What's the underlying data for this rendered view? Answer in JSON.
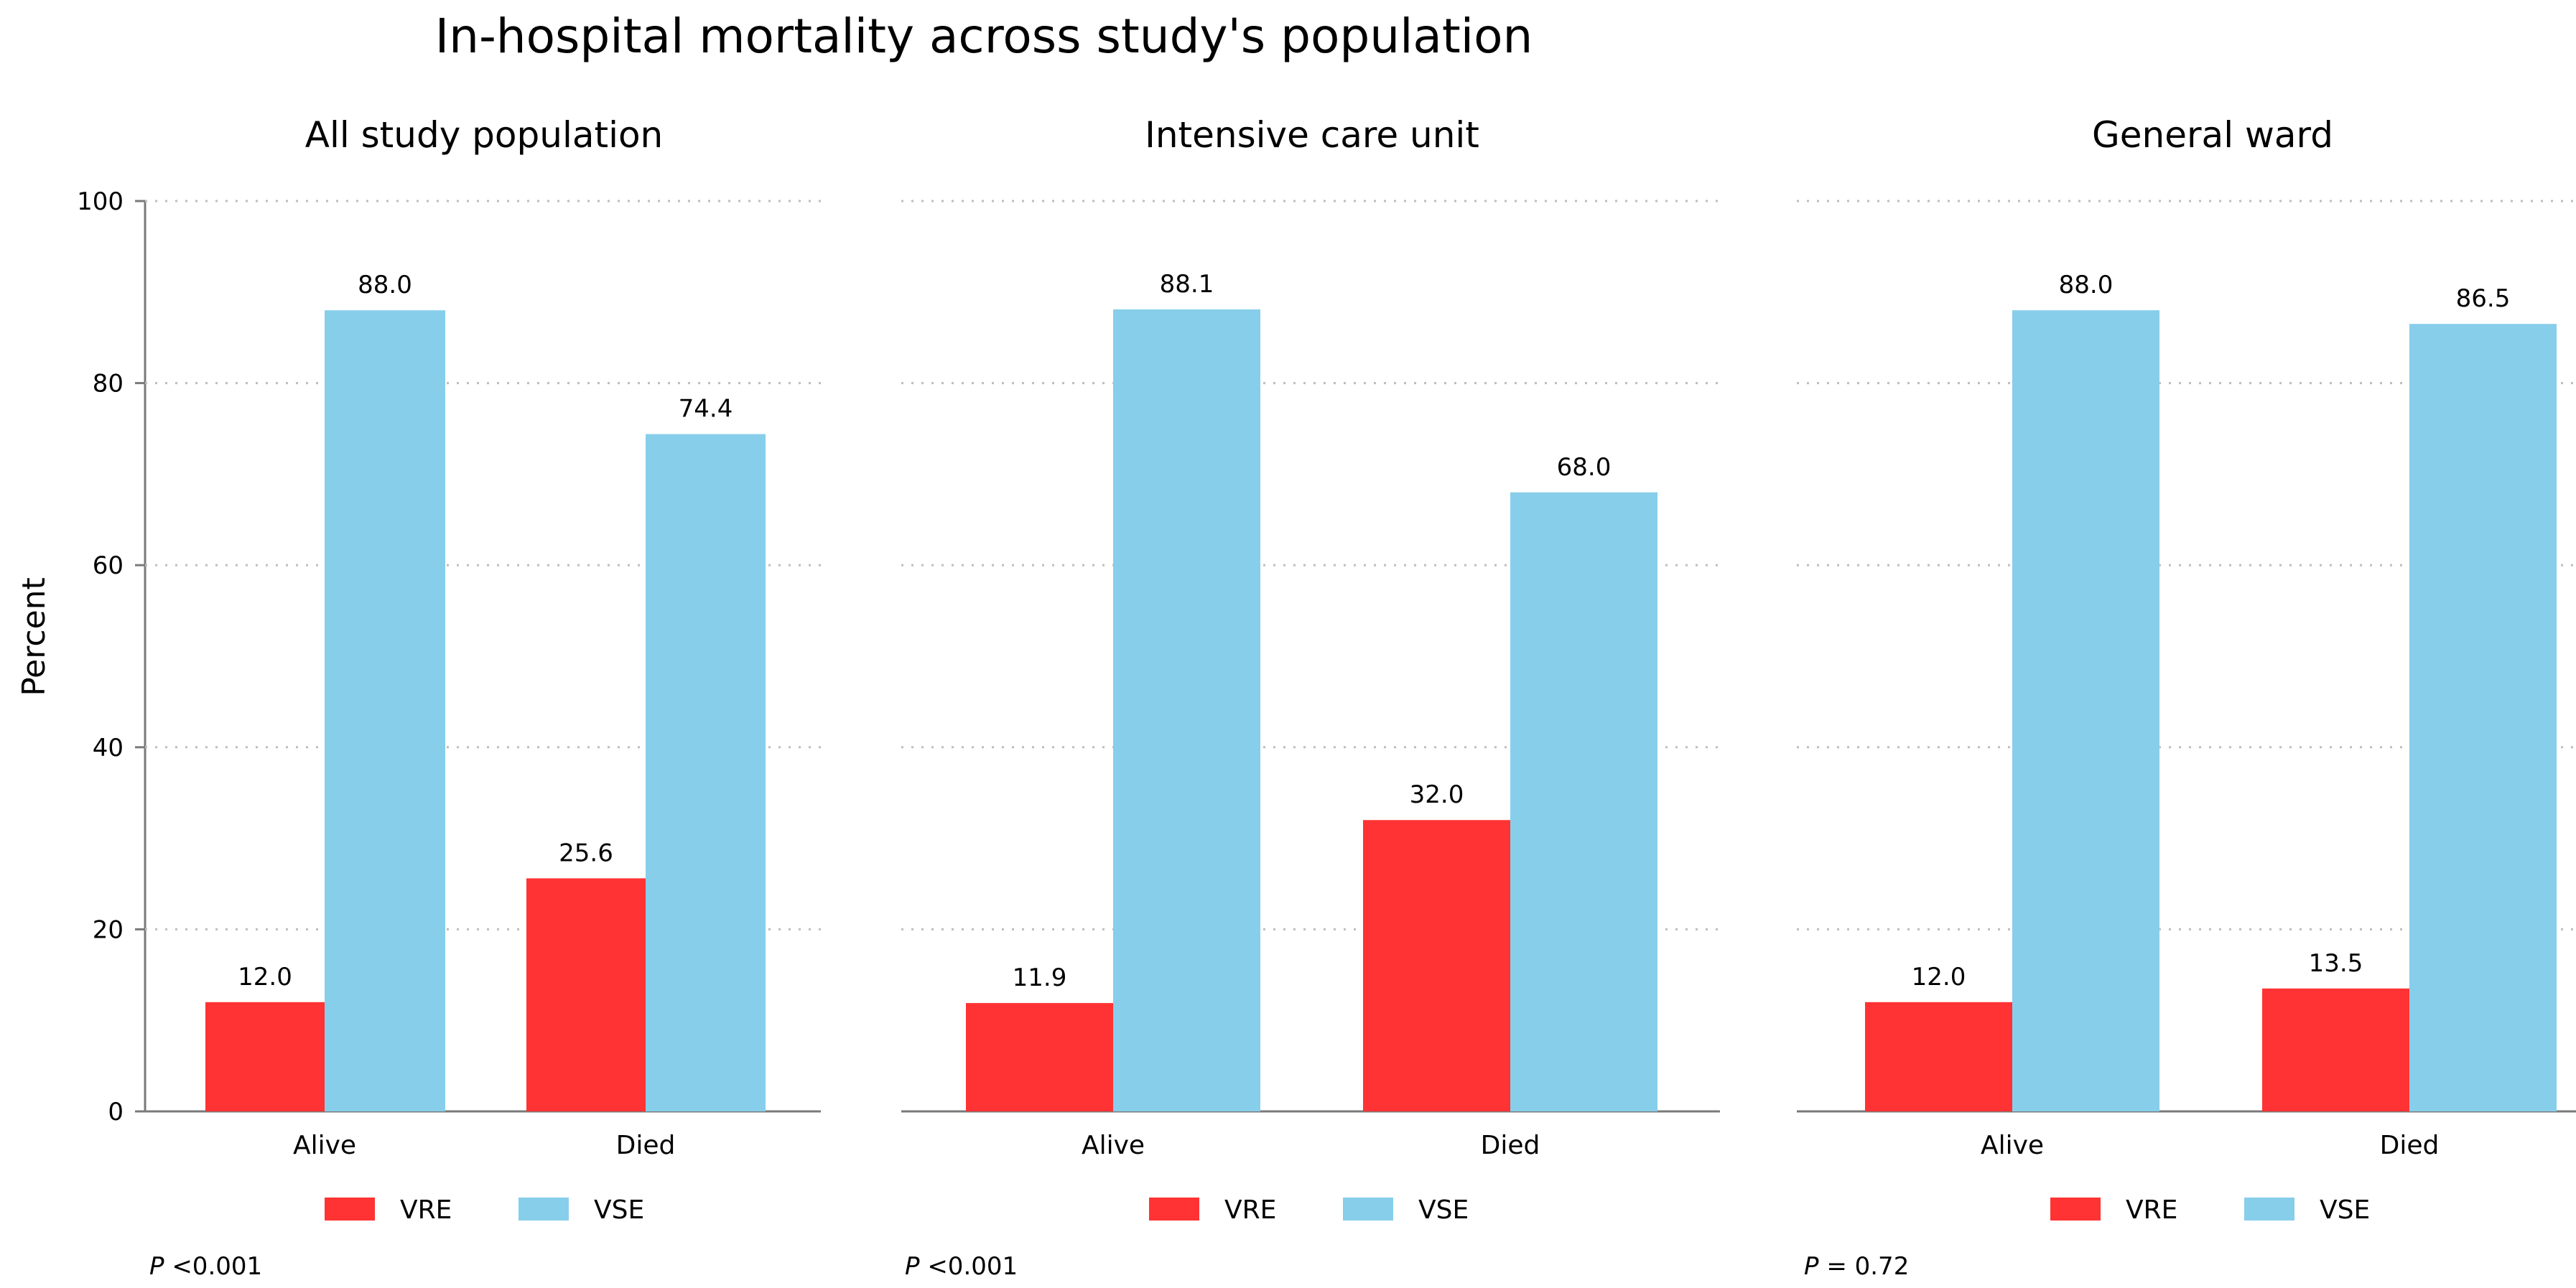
{
  "chart_data": {
    "type": "bar",
    "title": "In-hospital mortality across study's population",
    "ylabel": "Percent",
    "ylim": [
      0,
      100
    ],
    "yticks": [
      0,
      20,
      40,
      60,
      80,
      100
    ],
    "grid": true,
    "legend_position": "bottom",
    "series_names": [
      "VRE",
      "VSE"
    ],
    "colors": {
      "VRE": "#ff3333",
      "VSE": "#87ceeb"
    },
    "panels": [
      {
        "title": "All study population",
        "categories": [
          "Alive",
          "Died"
        ],
        "series": [
          {
            "name": "VRE",
            "values": [
              12.0,
              25.6
            ],
            "labels": [
              "12.0",
              "25.6"
            ]
          },
          {
            "name": "VSE",
            "values": [
              88.0,
              74.4
            ],
            "labels": [
              "88.0",
              "74.4"
            ]
          }
        ],
        "p_symbol": "P",
        "p_text": " <0.001"
      },
      {
        "title": "Intensive care unit",
        "categories": [
          "Alive",
          "Died"
        ],
        "series": [
          {
            "name": "VRE",
            "values": [
              11.9,
              32.0
            ],
            "labels": [
              "11.9",
              "32.0"
            ]
          },
          {
            "name": "VSE",
            "values": [
              88.1,
              68.0
            ],
            "labels": [
              "88.1",
              "68.0"
            ]
          }
        ],
        "p_symbol": "P",
        "p_text": " <0.001"
      },
      {
        "title": "General ward",
        "categories": [
          "Alive",
          "Died"
        ],
        "series": [
          {
            "name": "VRE",
            "values": [
              12.0,
              13.5
            ],
            "labels": [
              "12.0",
              "13.5"
            ]
          },
          {
            "name": "VSE",
            "values": [
              88.0,
              86.5
            ],
            "labels": [
              "88.0",
              "86.5"
            ]
          }
        ],
        "p_symbol": "P",
        "p_text": " = 0.72"
      }
    ]
  }
}
